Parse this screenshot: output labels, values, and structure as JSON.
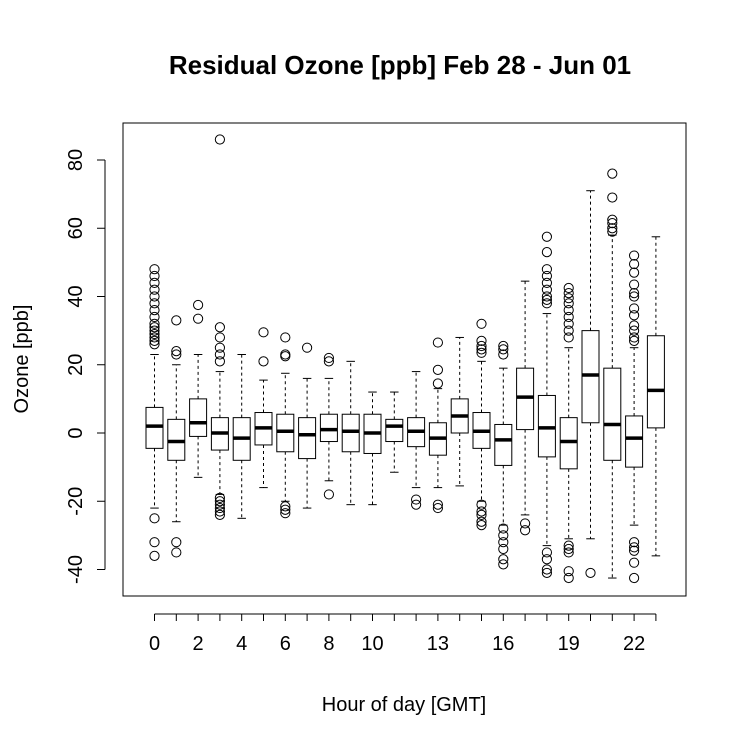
{
  "chart_data": {
    "type": "boxplot",
    "title": "Residual Ozone [ppb] Feb 28 - Jun 01",
    "xlabel": "Hour of day [GMT]",
    "ylabel": "Ozone [ppb]",
    "ylim": [
      -47,
      91
    ],
    "yticks": [
      -40,
      -20,
      0,
      20,
      40,
      60,
      80
    ],
    "xtick_labels": [
      {
        "hour": 0,
        "label": "0"
      },
      {
        "hour": 2,
        "label": "2"
      },
      {
        "hour": 4,
        "label": "4"
      },
      {
        "hour": 6,
        "label": "6"
      },
      {
        "hour": 8,
        "label": "8"
      },
      {
        "hour": 10,
        "label": "10"
      },
      {
        "hour": 13,
        "label": "13"
      },
      {
        "hour": 16,
        "label": "16"
      },
      {
        "hour": 19,
        "label": "19"
      },
      {
        "hour": 22,
        "label": "22"
      }
    ],
    "boxes": [
      {
        "hour": 0,
        "whisker_low": -22,
        "q1": -4.5,
        "median": 2,
        "q3": 7.5,
        "whisker_high": 23,
        "outliers": [
          48,
          46,
          44,
          42,
          40,
          38,
          36,
          34,
          32,
          31,
          30,
          29,
          28,
          27,
          26,
          -25,
          -32,
          -36
        ]
      },
      {
        "hour": 1,
        "whisker_low": -26,
        "q1": -8,
        "median": -2.5,
        "q3": 4,
        "whisker_high": 20,
        "outliers": [
          33,
          24,
          23,
          -32,
          -35
        ]
      },
      {
        "hour": 2,
        "whisker_low": -13,
        "q1": -1,
        "median": 3,
        "q3": 10,
        "whisker_high": 23,
        "outliers": [
          37.5,
          33.5
        ]
      },
      {
        "hour": 3,
        "whisker_low": -18,
        "q1": -5,
        "median": 0,
        "q3": 4.5,
        "whisker_high": 18,
        "outliers": [
          86,
          31,
          28,
          25,
          23,
          21,
          -19,
          -20,
          -21,
          -22,
          -23,
          -24
        ]
      },
      {
        "hour": 4,
        "whisker_low": -25,
        "q1": -8,
        "median": -1.5,
        "q3": 4.5,
        "whisker_high": 23,
        "outliers": []
      },
      {
        "hour": 5,
        "whisker_low": -16,
        "q1": -3.5,
        "median": 1.5,
        "q3": 6,
        "whisker_high": 15.5,
        "outliers": [
          29.5,
          21
        ]
      },
      {
        "hour": 6,
        "whisker_low": -20,
        "q1": -5.5,
        "median": 0.5,
        "q3": 5.5,
        "whisker_high": 17.5,
        "outliers": [
          28,
          23,
          22.5,
          -21.5,
          -22.5,
          -23.5
        ]
      },
      {
        "hour": 7,
        "whisker_low": -22,
        "q1": -7.5,
        "median": -0.5,
        "q3": 4.5,
        "whisker_high": 16,
        "outliers": [
          25
        ]
      },
      {
        "hour": 8,
        "whisker_low": -14,
        "q1": -2.5,
        "median": 1,
        "q3": 5.5,
        "whisker_high": 16,
        "outliers": [
          22,
          21,
          -18
        ]
      },
      {
        "hour": 9,
        "whisker_low": -21,
        "q1": -5.5,
        "median": 0.5,
        "q3": 5.5,
        "whisker_high": 21,
        "outliers": []
      },
      {
        "hour": 10,
        "whisker_low": -21,
        "q1": -6,
        "median": 0,
        "q3": 5.5,
        "whisker_high": 12,
        "outliers": []
      },
      {
        "hour": 11,
        "whisker_low": -11.5,
        "q1": -2.5,
        "median": 2,
        "q3": 4,
        "whisker_high": 12,
        "outliers": []
      },
      {
        "hour": 12,
        "whisker_low": -16,
        "q1": -4,
        "median": 0.5,
        "q3": 4.5,
        "whisker_high": 18,
        "outliers": [
          -19.5,
          -21
        ]
      },
      {
        "hour": 13,
        "whisker_low": -16,
        "q1": -6.5,
        "median": -1.5,
        "q3": 3,
        "whisker_high": 13,
        "outliers": [
          26.5,
          18.5,
          14.5,
          -21,
          -22
        ]
      },
      {
        "hour": 14,
        "whisker_low": -15.5,
        "q1": 0,
        "median": 5,
        "q3": 10,
        "whisker_high": 28,
        "outliers": []
      },
      {
        "hour": 15,
        "whisker_low": -20,
        "q1": -4.5,
        "median": 0.5,
        "q3": 6,
        "whisker_high": 21,
        "outliers": [
          32,
          27,
          25.5,
          24.5,
          23.5,
          -21,
          -23,
          -24,
          -26,
          -27
        ]
      },
      {
        "hour": 16,
        "whisker_low": -27,
        "q1": -9.5,
        "median": -2,
        "q3": 2.5,
        "whisker_high": 19,
        "outliers": [
          25.5,
          24.5,
          23,
          -28,
          -30,
          -32,
          -34,
          -37,
          -38.5
        ]
      },
      {
        "hour": 17,
        "whisker_low": -24,
        "q1": 1,
        "median": 10.5,
        "q3": 19,
        "whisker_high": 44.5,
        "outliers": [
          -26.5,
          -28.5
        ]
      },
      {
        "hour": 18,
        "whisker_low": -33,
        "q1": -7,
        "median": 1.5,
        "q3": 11,
        "whisker_high": 35,
        "outliers": [
          57.5,
          53,
          48,
          46,
          44,
          42,
          40,
          39,
          38,
          -35,
          -37,
          -40,
          -41
        ]
      },
      {
        "hour": 19,
        "whisker_low": -31,
        "q1": -10.5,
        "median": -2.5,
        "q3": 4.5,
        "whisker_high": 25,
        "outliers": [
          42.5,
          41,
          39.5,
          38,
          36,
          34,
          32,
          30,
          28,
          -33,
          -34,
          -35,
          -40.5,
          -42.5
        ]
      },
      {
        "hour": 20,
        "whisker_low": -31,
        "q1": 3,
        "median": 17,
        "q3": 30,
        "whisker_high": 71,
        "outliers": [
          -41
        ]
      },
      {
        "hour": 21,
        "whisker_low": -42.5,
        "q1": -8,
        "median": 2.5,
        "q3": 19,
        "whisker_high": 58,
        "outliers": [
          76,
          69,
          62.5,
          61.5,
          60,
          59
        ]
      },
      {
        "hour": 22,
        "whisker_low": -27,
        "q1": -10,
        "median": -1.5,
        "q3": 5,
        "whisker_high": 25,
        "outliers": [
          52,
          49.5,
          47,
          43.5,
          41,
          40,
          36.5,
          34.5,
          31.5,
          30,
          28,
          27,
          -32,
          -33.5,
          -34.5,
          -38,
          -42.5
        ]
      },
      {
        "hour": 23,
        "whisker_low": -36,
        "q1": 1.5,
        "median": 12.5,
        "q3": 28.5,
        "whisker_high": 57.5,
        "outliers": []
      }
    ]
  }
}
